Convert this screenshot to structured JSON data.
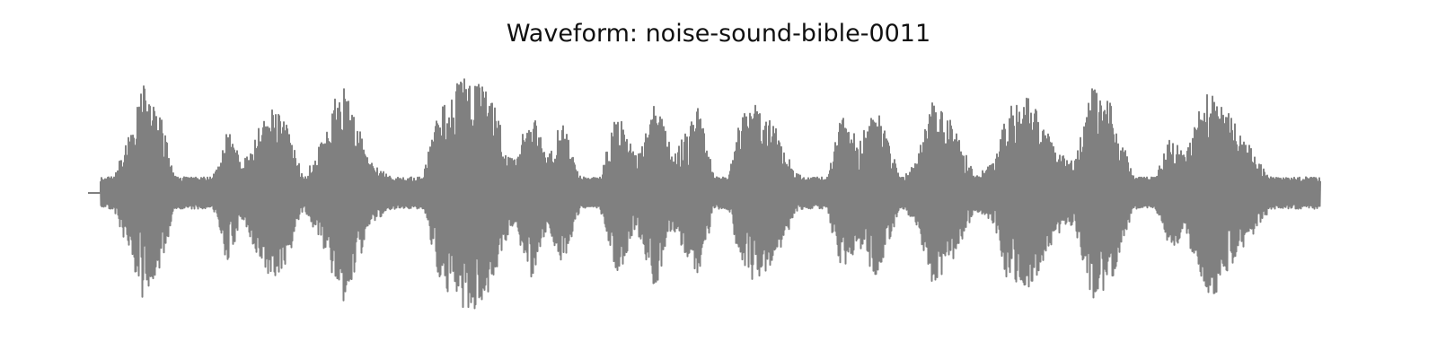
{
  "chart_data": {
    "type": "line",
    "title": "Waveform: noise-sound-bible-0011",
    "xlabel": "",
    "ylabel": "",
    "axes_visible": false,
    "grid": false,
    "legend": "none",
    "ylim": [
      -1.0,
      1.0
    ],
    "x_range": [
      0.0,
      1.0
    ],
    "line_color": "#808080",
    "envelope": {
      "x": [
        0.0,
        0.01,
        0.012,
        0.02,
        0.03,
        0.045,
        0.06,
        0.07,
        0.08,
        0.095,
        0.105,
        0.113,
        0.125,
        0.138,
        0.15,
        0.162,
        0.175,
        0.195,
        0.205,
        0.215,
        0.23,
        0.25,
        0.27,
        0.285,
        0.3,
        0.312,
        0.325,
        0.345,
        0.36,
        0.372,
        0.385,
        0.4,
        0.415,
        0.43,
        0.445,
        0.46,
        0.475,
        0.485,
        0.495,
        0.51,
        0.52,
        0.53,
        0.545,
        0.56,
        0.575,
        0.59,
        0.6,
        0.61,
        0.625,
        0.64,
        0.65,
        0.66,
        0.672,
        0.685,
        0.7,
        0.72,
        0.735,
        0.745,
        0.765,
        0.785,
        0.8,
        0.815,
        0.83,
        0.84,
        0.85,
        0.865,
        0.88,
        0.89,
        0.905,
        0.915,
        0.935,
        0.955,
        0.97,
        0.985,
        1.0
      ],
      "amp": [
        0.0,
        0.0,
        0.05,
        0.1,
        0.4,
        0.88,
        0.6,
        0.14,
        0.12,
        0.08,
        0.2,
        0.6,
        0.22,
        0.55,
        0.75,
        0.55,
        0.12,
        0.55,
        0.95,
        0.7,
        0.25,
        0.1,
        0.08,
        0.72,
        0.92,
        0.98,
        0.85,
        0.25,
        0.7,
        0.3,
        0.6,
        0.12,
        0.12,
        0.7,
        0.3,
        0.8,
        0.3,
        0.5,
        0.7,
        0.1,
        0.14,
        0.65,
        0.75,
        0.5,
        0.16,
        0.08,
        0.12,
        0.65,
        0.45,
        0.7,
        0.4,
        0.12,
        0.25,
        0.75,
        0.6,
        0.14,
        0.25,
        0.7,
        0.8,
        0.35,
        0.25,
        0.88,
        0.75,
        0.4,
        0.14,
        0.1,
        0.5,
        0.3,
        0.8,
        0.85,
        0.5,
        0.2,
        0.0,
        0.0,
        0.0
      ]
    },
    "seed": 11
  }
}
